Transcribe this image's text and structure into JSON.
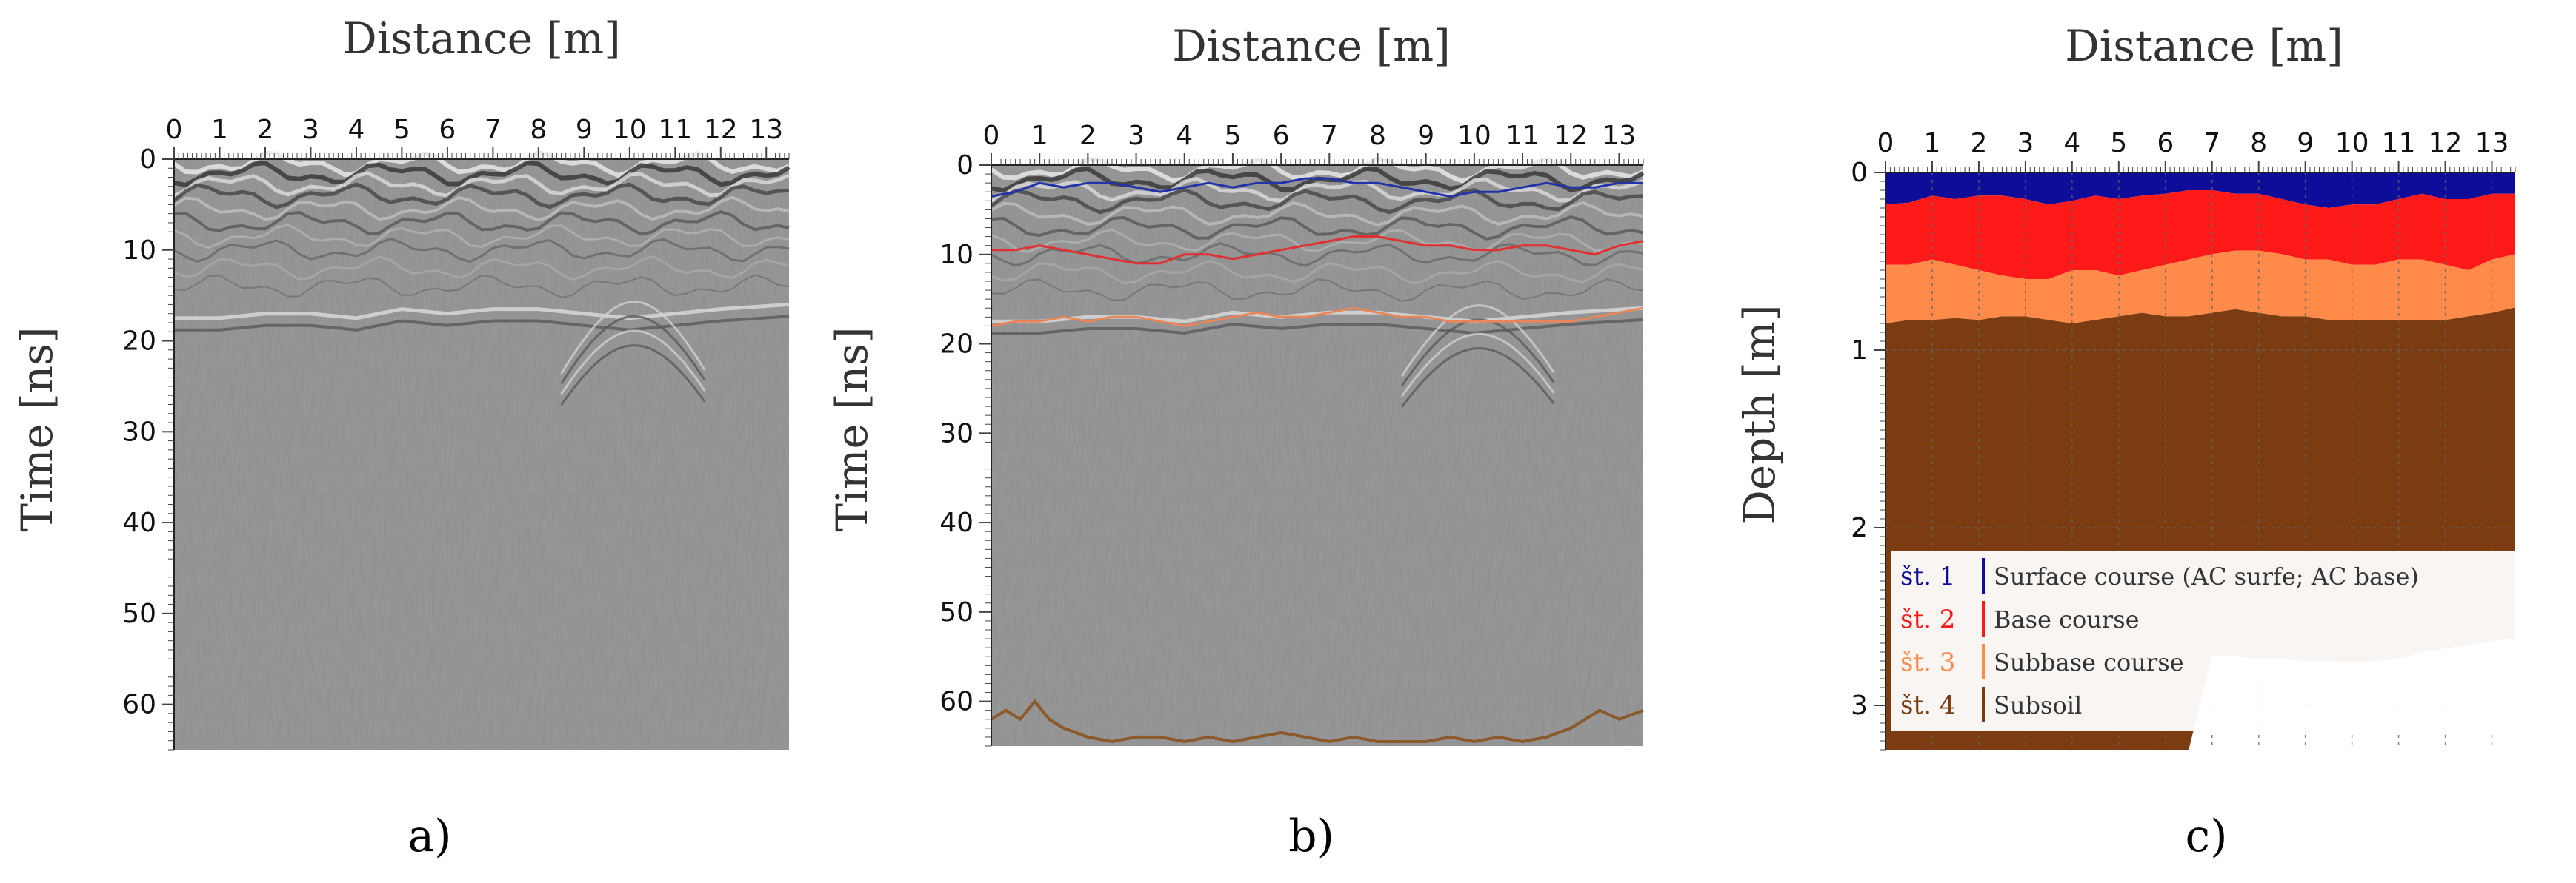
{
  "chart_data": [
    {
      "type": "heatmap",
      "panel_label": "a)",
      "xlabel": "Distance [m]",
      "ylabel": "Time [ns]",
      "x_ticks": [
        0,
        1,
        2,
        3,
        4,
        5,
        6,
        7,
        8,
        9,
        10,
        11,
        12,
        13
      ],
      "y_ticks": [
        0,
        10,
        20,
        30,
        40,
        50,
        60
      ],
      "xlim": [
        0,
        13.5
      ],
      "ylim": [
        0,
        65
      ],
      "y_inverted": true,
      "grid": false,
      "reflectors": [
        {
          "name": "",
          "color": "#cfcfcf",
          "x": [
            0,
            1,
            2,
            3,
            4,
            5,
            6,
            7,
            8,
            9,
            10,
            11,
            12,
            13.5
          ],
          "y": [
            17.5,
            17.5,
            17,
            17,
            17.5,
            16.5,
            17,
            16.5,
            16.5,
            17,
            17.5,
            17,
            16.5,
            16
          ]
        }
      ]
    },
    {
      "type": "line",
      "panel_label": "b)",
      "xlabel": "Distance [m]",
      "ylabel": "Time [ns]",
      "x_ticks": [
        0,
        1,
        2,
        3,
        4,
        5,
        6,
        7,
        8,
        9,
        10,
        11,
        12,
        13
      ],
      "y_ticks": [
        0,
        10,
        20,
        30,
        40,
        50,
        60
      ],
      "xlim": [
        0,
        13.5
      ],
      "ylim": [
        0,
        65
      ],
      "y_inverted": true,
      "grid": false,
      "series": [
        {
          "name": "",
          "color": "#2233aa",
          "x": [
            0,
            0.5,
            1,
            1.5,
            2,
            2.5,
            3,
            3.5,
            4,
            4.5,
            5,
            5.5,
            6,
            6.5,
            7,
            7.5,
            8,
            8.5,
            9,
            9.5,
            10,
            10.5,
            11,
            11.5,
            12,
            12.5,
            13,
            13.5
          ],
          "y": [
            3.5,
            3,
            2,
            2.5,
            2,
            2,
            2.5,
            3,
            2.5,
            2,
            2.5,
            2,
            2,
            1.5,
            1.5,
            2,
            2,
            2.5,
            3,
            3.5,
            3,
            3,
            2.5,
            2,
            2.5,
            2.5,
            2,
            2
          ]
        },
        {
          "name": "",
          "color": "#e03030",
          "x": [
            0,
            0.5,
            1,
            1.5,
            2,
            2.5,
            3,
            3.5,
            4,
            4.5,
            5,
            5.5,
            6,
            6.5,
            7,
            7.5,
            8,
            8.5,
            9,
            9.5,
            10,
            10.5,
            11,
            11.5,
            12,
            12.5,
            13,
            13.5
          ],
          "y": [
            9.5,
            9.5,
            9,
            9.5,
            10,
            10.5,
            11,
            11,
            10,
            10,
            10.5,
            10,
            9.5,
            9,
            8.5,
            8,
            8,
            8.5,
            9,
            9,
            9.5,
            9.5,
            9,
            9,
            9.5,
            10,
            9,
            8.5
          ]
        },
        {
          "name": "",
          "color": "#e8865a",
          "x": [
            0,
            0.5,
            1,
            1.5,
            2,
            2.5,
            3,
            3.5,
            4,
            4.5,
            5,
            5.5,
            6,
            6.5,
            7,
            7.5,
            8,
            8.5,
            9,
            9.5,
            10,
            10.5,
            11,
            11.5,
            12,
            12.5,
            13,
            13.5
          ],
          "y": [
            18,
            17.5,
            17.5,
            17,
            17.5,
            17,
            17,
            17.5,
            18,
            17.5,
            17,
            16.5,
            17,
            17,
            16.5,
            16,
            16.5,
            17,
            17,
            17.5,
            17.5,
            17.5,
            17.5,
            17.5,
            17.5,
            17,
            16.5,
            16
          ]
        },
        {
          "name": "",
          "color": "#8a5a2a",
          "x": [
            0,
            0.3,
            0.6,
            0.9,
            1.2,
            1.5,
            2,
            2.5,
            3,
            3.5,
            4,
            4.5,
            5,
            5.5,
            6,
            6.5,
            7,
            7.5,
            8,
            8.5,
            9,
            9.5,
            10,
            10.5,
            11,
            11.5,
            12,
            12.3,
            12.6,
            13,
            13.5
          ],
          "y": [
            62,
            61,
            62,
            60,
            62,
            63,
            64,
            64.5,
            64,
            64,
            64.5,
            64,
            64.5,
            64,
            63.5,
            64,
            64.5,
            64,
            64.5,
            64.5,
            64.5,
            64,
            64.5,
            64,
            64.5,
            64,
            63,
            62,
            61,
            62,
            61
          ]
        }
      ]
    },
    {
      "type": "area",
      "panel_label": "c)",
      "xlabel": "Distance [m]",
      "ylabel": "Depth [m]",
      "x_ticks": [
        0,
        1,
        2,
        3,
        4,
        5,
        6,
        7,
        8,
        9,
        10,
        11,
        12,
        13
      ],
      "y_ticks": [
        0,
        1,
        2,
        3
      ],
      "xlim": [
        0,
        13.5
      ],
      "ylim": [
        0,
        3.25
      ],
      "y_inverted": true,
      "grid": true,
      "x": [
        0,
        0.5,
        1,
        1.5,
        2,
        2.5,
        3,
        3.5,
        4,
        4.5,
        5,
        5.5,
        6,
        6.5,
        7,
        7.5,
        8,
        8.5,
        9,
        9.5,
        10,
        10.5,
        11,
        11.5,
        12,
        12.5,
        13,
        13.5
      ],
      "boundaries": {
        "surface_base": [
          0.18,
          0.17,
          0.13,
          0.15,
          0.13,
          0.13,
          0.15,
          0.18,
          0.16,
          0.13,
          0.15,
          0.13,
          0.12,
          0.1,
          0.1,
          0.12,
          0.12,
          0.15,
          0.18,
          0.2,
          0.18,
          0.18,
          0.15,
          0.12,
          0.15,
          0.15,
          0.12,
          0.12
        ],
        "base_subbase": [
          0.52,
          0.52,
          0.49,
          0.52,
          0.55,
          0.58,
          0.6,
          0.6,
          0.55,
          0.55,
          0.58,
          0.55,
          0.52,
          0.49,
          0.46,
          0.44,
          0.44,
          0.46,
          0.49,
          0.49,
          0.52,
          0.52,
          0.49,
          0.49,
          0.52,
          0.55,
          0.49,
          0.46
        ],
        "subbase_subsoil": [
          0.85,
          0.83,
          0.83,
          0.82,
          0.83,
          0.81,
          0.81,
          0.83,
          0.85,
          0.83,
          0.81,
          0.79,
          0.81,
          0.81,
          0.79,
          0.77,
          0.79,
          0.81,
          0.81,
          0.83,
          0.83,
          0.83,
          0.83,
          0.83,
          0.83,
          0.81,
          0.79,
          0.76
        ],
        "subsoil_bottom": [
          3.25,
          3.25,
          3.25,
          3.25,
          3.25,
          3.25,
          3.25,
          3.25,
          3.25,
          3.25,
          3.25,
          3.25,
          3.25,
          3.25,
          2.72,
          2.72,
          2.74,
          2.74,
          2.75,
          2.75,
          2.76,
          2.75,
          2.74,
          2.7,
          2.68,
          2.66,
          2.64,
          2.62
        ]
      },
      "legend_placement": "bottom-left",
      "legend": [
        {
          "code": "št. 1",
          "label": "Surface course (AC surfe; AC base)",
          "color": "#0d0d99"
        },
        {
          "code": "št. 2",
          "label": "Base course",
          "color": "#ff1a1a"
        },
        {
          "code": "št. 3",
          "label": "Subbase course",
          "color": "#ff8a4a"
        },
        {
          "code": "št. 4",
          "label": "Subsoil",
          "color": "#7a3c10"
        }
      ]
    }
  ]
}
